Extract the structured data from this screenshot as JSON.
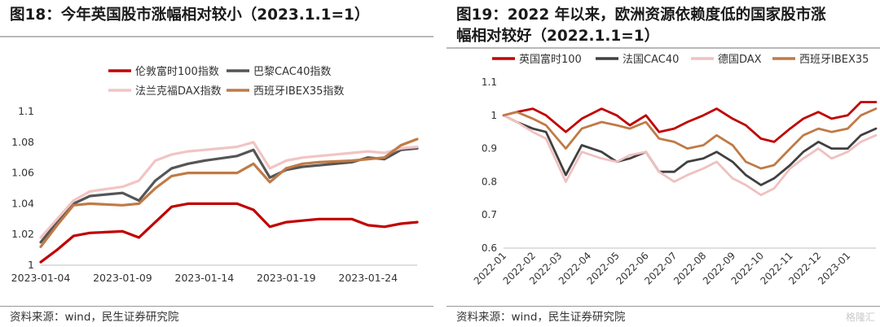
{
  "left": {
    "title": "图18：今年英国股市涨幅相对较小（2023.1.1=1）",
    "source": "资料来源：wind，民生证券研究院"
  },
  "right": {
    "title_line1": "图19：2022 年以来，欧洲资源依赖度低的国家股市涨",
    "title_line2": "幅相对较好（2022.1.1=1）",
    "source": "资料来源：wind，民生证券研究院"
  },
  "watermark": "格隆汇",
  "chart_data": [
    {
      "type": "line",
      "title": "图18：今年英国股市涨幅相对较小（2023.1.1=1）",
      "ylim": [
        1,
        1.1
      ],
      "yticks": [
        "1",
        "1.02",
        "1.04",
        "1.06",
        "1.08",
        "1.1"
      ],
      "xticks": [
        "2023-01-04",
        "2023-01-09",
        "2023-01-14",
        "2023-01-19",
        "2023-01-24"
      ],
      "xlim": [
        "2023-01-04",
        "2023-01-27"
      ],
      "legend": "top",
      "series": [
        {
          "name": "伦敦富时100指数",
          "color": "#c00000",
          "x": [
            "2023-01-04",
            "2023-01-05",
            "2023-01-06",
            "2023-01-07",
            "2023-01-09",
            "2023-01-10",
            "2023-01-11",
            "2023-01-12",
            "2023-01-13",
            "2023-01-14",
            "2023-01-16",
            "2023-01-17",
            "2023-01-18",
            "2023-01-19",
            "2023-01-20",
            "2023-01-21",
            "2023-01-23",
            "2023-01-24",
            "2023-01-25",
            "2023-01-26",
            "2023-01-27"
          ],
          "values": [
            1.002,
            1.01,
            1.019,
            1.021,
            1.022,
            1.018,
            1.028,
            1.038,
            1.04,
            1.04,
            1.04,
            1.036,
            1.025,
            1.028,
            1.029,
            1.03,
            1.03,
            1.026,
            1.025,
            1.027,
            1.028
          ]
        },
        {
          "name": "巴黎CAC40指数",
          "color": "#555555",
          "x": [
            "2023-01-04",
            "2023-01-05",
            "2023-01-06",
            "2023-01-07",
            "2023-01-09",
            "2023-01-10",
            "2023-01-11",
            "2023-01-12",
            "2023-01-13",
            "2023-01-14",
            "2023-01-16",
            "2023-01-17",
            "2023-01-18",
            "2023-01-19",
            "2023-01-20",
            "2023-01-21",
            "2023-01-23",
            "2023-01-24",
            "2023-01-25",
            "2023-01-26",
            "2023-01-27"
          ],
          "values": [
            1.015,
            1.028,
            1.04,
            1.045,
            1.047,
            1.042,
            1.055,
            1.063,
            1.066,
            1.068,
            1.071,
            1.075,
            1.057,
            1.062,
            1.064,
            1.065,
            1.067,
            1.07,
            1.069,
            1.075,
            1.076
          ]
        },
        {
          "name": "法兰克福DAX指数",
          "color": "#f2c4c4",
          "x": [
            "2023-01-04",
            "2023-01-05",
            "2023-01-06",
            "2023-01-07",
            "2023-01-09",
            "2023-01-10",
            "2023-01-11",
            "2023-01-12",
            "2023-01-13",
            "2023-01-14",
            "2023-01-16",
            "2023-01-17",
            "2023-01-18",
            "2023-01-19",
            "2023-01-20",
            "2023-01-21",
            "2023-01-23",
            "2023-01-24",
            "2023-01-25",
            "2023-01-26",
            "2023-01-27"
          ],
          "values": [
            1.018,
            1.03,
            1.042,
            1.048,
            1.051,
            1.055,
            1.068,
            1.072,
            1.074,
            1.075,
            1.077,
            1.08,
            1.063,
            1.068,
            1.07,
            1.071,
            1.073,
            1.074,
            1.073,
            1.076,
            1.077
          ]
        },
        {
          "name": "西班牙IBEX35指数",
          "color": "#c07a45",
          "x": [
            "2023-01-04",
            "2023-01-05",
            "2023-01-06",
            "2023-01-07",
            "2023-01-09",
            "2023-01-10",
            "2023-01-11",
            "2023-01-12",
            "2023-01-13",
            "2023-01-14",
            "2023-01-16",
            "2023-01-17",
            "2023-01-18",
            "2023-01-19",
            "2023-01-20",
            "2023-01-21",
            "2023-01-23",
            "2023-01-24",
            "2023-01-25",
            "2023-01-26",
            "2023-01-27"
          ],
          "values": [
            1.012,
            1.026,
            1.039,
            1.04,
            1.039,
            1.04,
            1.05,
            1.058,
            1.06,
            1.06,
            1.06,
            1.066,
            1.054,
            1.063,
            1.066,
            1.067,
            1.068,
            1.069,
            1.07,
            1.078,
            1.082
          ]
        }
      ]
    },
    {
      "type": "line",
      "title": "图19：2022 年以来，欧洲资源依赖度低的国家股市涨幅相对较好（2022.1.1=1）",
      "ylim": [
        0.6,
        1.1
      ],
      "yticks": [
        "0.6",
        "0.7",
        "0.8",
        "0.9",
        "1",
        "1.1"
      ],
      "xticks": [
        "2022-01",
        "2022-02",
        "2022-03",
        "2022-04",
        "2022-05",
        "2022-06",
        "2022-07",
        "2022-08",
        "2022-09",
        "2022-10",
        "2022-11",
        "2022-12",
        "2023-01"
      ],
      "xlim": [
        "2022-01-01",
        "2023-01-31"
      ],
      "legend": "top",
      "series": [
        {
          "name": "英国富时100",
          "color": "#c00000",
          "x": [
            "2022-01-01",
            "2022-01-15",
            "2022-02-01",
            "2022-02-15",
            "2022-03-08",
            "2022-03-25",
            "2022-04-15",
            "2022-05-01",
            "2022-05-15",
            "2022-06-01",
            "2022-06-15",
            "2022-07-01",
            "2022-07-15",
            "2022-08-01",
            "2022-08-15",
            "2022-09-01",
            "2022-09-15",
            "2022-10-01",
            "2022-10-15",
            "2022-11-01",
            "2022-11-15",
            "2022-12-01",
            "2022-12-15",
            "2023-01-01",
            "2023-01-15",
            "2023-01-31"
          ],
          "values": [
            1.0,
            1.01,
            1.02,
            1.0,
            0.95,
            0.99,
            1.02,
            1.0,
            0.97,
            1.0,
            0.95,
            0.96,
            0.98,
            1.0,
            1.02,
            0.99,
            0.97,
            0.93,
            0.92,
            0.96,
            0.99,
            1.01,
            0.99,
            1.0,
            1.04,
            1.04
          ]
        },
        {
          "name": "法国CAC40",
          "color": "#404040",
          "x": [
            "2022-01-01",
            "2022-01-15",
            "2022-02-01",
            "2022-02-15",
            "2022-03-08",
            "2022-03-25",
            "2022-04-15",
            "2022-05-01",
            "2022-05-15",
            "2022-06-01",
            "2022-06-15",
            "2022-07-01",
            "2022-07-15",
            "2022-08-01",
            "2022-08-15",
            "2022-09-01",
            "2022-09-15",
            "2022-10-01",
            "2022-10-15",
            "2022-11-01",
            "2022-11-15",
            "2022-12-01",
            "2022-12-15",
            "2023-01-01",
            "2023-01-15",
            "2023-01-31"
          ],
          "values": [
            1.0,
            0.98,
            0.96,
            0.95,
            0.82,
            0.91,
            0.89,
            0.86,
            0.87,
            0.89,
            0.83,
            0.83,
            0.86,
            0.87,
            0.89,
            0.86,
            0.82,
            0.79,
            0.81,
            0.85,
            0.89,
            0.92,
            0.9,
            0.9,
            0.94,
            0.96
          ]
        },
        {
          "name": "德国DAX",
          "color": "#f0c0c0",
          "x": [
            "2022-01-01",
            "2022-01-15",
            "2022-02-01",
            "2022-02-15",
            "2022-03-08",
            "2022-03-25",
            "2022-04-15",
            "2022-05-01",
            "2022-05-15",
            "2022-06-01",
            "2022-06-15",
            "2022-07-01",
            "2022-07-15",
            "2022-08-01",
            "2022-08-15",
            "2022-09-01",
            "2022-09-15",
            "2022-10-01",
            "2022-10-15",
            "2022-11-01",
            "2022-11-15",
            "2022-12-01",
            "2022-12-15",
            "2023-01-01",
            "2023-01-15",
            "2023-01-31"
          ],
          "values": [
            1.0,
            0.98,
            0.95,
            0.93,
            0.8,
            0.89,
            0.87,
            0.86,
            0.88,
            0.89,
            0.83,
            0.8,
            0.82,
            0.84,
            0.86,
            0.81,
            0.79,
            0.76,
            0.78,
            0.84,
            0.87,
            0.9,
            0.87,
            0.89,
            0.92,
            0.94
          ]
        },
        {
          "name": "西班牙IBEX35",
          "color": "#c07a45",
          "x": [
            "2022-01-01",
            "2022-01-15",
            "2022-02-01",
            "2022-02-15",
            "2022-03-08",
            "2022-03-25",
            "2022-04-15",
            "2022-05-01",
            "2022-05-15",
            "2022-06-01",
            "2022-06-15",
            "2022-07-01",
            "2022-07-15",
            "2022-08-01",
            "2022-08-15",
            "2022-09-01",
            "2022-09-15",
            "2022-10-01",
            "2022-10-15",
            "2022-11-01",
            "2022-11-15",
            "2022-12-01",
            "2022-12-15",
            "2023-01-01",
            "2023-01-15",
            "2023-01-31"
          ],
          "values": [
            1.0,
            1.01,
            0.99,
            0.97,
            0.9,
            0.96,
            0.98,
            0.97,
            0.96,
            0.98,
            0.93,
            0.92,
            0.9,
            0.91,
            0.94,
            0.91,
            0.86,
            0.84,
            0.85,
            0.9,
            0.94,
            0.96,
            0.95,
            0.96,
            1.0,
            1.02
          ]
        }
      ]
    }
  ]
}
